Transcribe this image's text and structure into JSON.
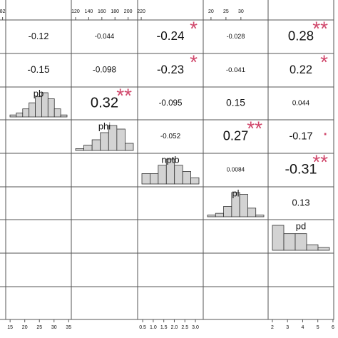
{
  "correlations": [
    {
      "value": -0.12
    },
    {
      "value": -0.044
    },
    {
      "value": -0.24,
      "stars": "*"
    },
    {
      "value": -0.028
    },
    {
      "value": 0.28,
      "stars": "**"
    },
    {
      "value": -0.15
    },
    {
      "value": -0.098
    },
    {
      "value": -0.23,
      "stars": "*"
    },
    {
      "value": -0.041
    },
    {
      "value": 0.22,
      "stars": "*"
    },
    {
      "value": 0.32,
      "stars": "**"
    },
    {
      "value": -0.095
    },
    {
      "value": 0.15
    },
    {
      "value": 0.044
    },
    {
      "value": -0.052
    },
    {
      "value": 0.27,
      "stars": "**"
    },
    {
      "value": -0.17,
      "stars": "."
    },
    {
      "value": 0.0084
    },
    {
      "value": -0.31,
      "stars": "**"
    },
    {
      "value": 0.13
    }
  ],
  "histograms": [
    {
      "label": "pb",
      "counts": [
        1,
        2,
        4,
        7,
        10,
        12,
        9,
        4,
        1
      ]
    },
    {
      "label": "phi",
      "counts": [
        1,
        3,
        6,
        10,
        14,
        12,
        4
      ]
    },
    {
      "label": "nptb",
      "counts": [
        5,
        5,
        9,
        12,
        9,
        6,
        3
      ]
    },
    {
      "label": "pl",
      "counts": [
        1,
        2,
        6,
        14,
        13,
        5,
        1
      ]
    },
    {
      "label": "pd",
      "counts": [
        9,
        6,
        6,
        2,
        1
      ]
    }
  ],
  "top_axes": [
    {
      "lim": [
        70,
        82.6
      ],
      "ticks": [
        82
      ]
    },
    {
      "lim": [
        113.5,
        214.5
      ],
      "ticks": [
        120,
        140,
        160,
        180,
        200,
        220
      ]
    },
    {
      "lim": [
        17.4,
        39.1
      ],
      "ticks": [
        20,
        25,
        30
      ]
    }
  ],
  "bottom_axes": [
    {
      "lim": [
        13.5,
        35.9
      ],
      "ticks": [
        15,
        20,
        25,
        30,
        35
      ]
    },
    {
      "lim": [
        0.26,
        3.37
      ],
      "ticks": [
        0.5,
        {
          "value": 1,
          "label": "1.0"
        },
        1.5,
        {
          "value": 2,
          "label": "2.0"
        },
        2.5,
        {
          "value": 3,
          "label": "3.0"
        }
      ]
    },
    {
      "lim": [
        1.72,
        6.05
      ],
      "ticks": [
        2,
        3,
        4,
        5,
        6
      ]
    }
  ]
}
